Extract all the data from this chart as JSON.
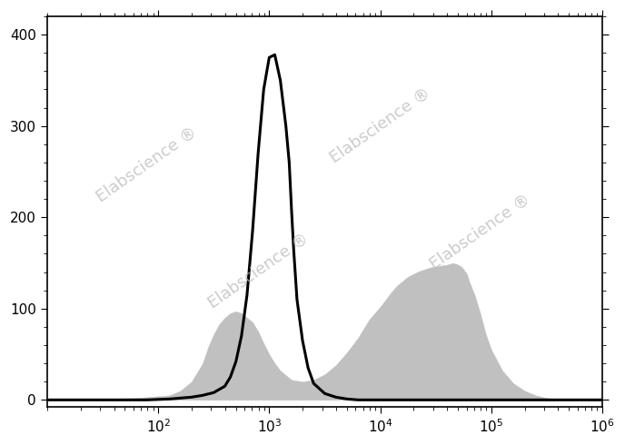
{
  "xlim_log": [
    1.0,
    6.0
  ],
  "ylim": [
    -8,
    420
  ],
  "yticks": [
    0,
    100,
    200,
    300,
    400
  ],
  "background_color": "#ffffff",
  "watermark_text": "Elabscience",
  "watermark_color": "#bbbbbb",
  "isotype_color": "#000000",
  "cd34_fill_color": "#c0c0c0",
  "isotype_linewidth": 2.2,
  "isotype_data": {
    "log_x": [
      1.0,
      1.6,
      1.9,
      2.1,
      2.2,
      2.3,
      2.4,
      2.5,
      2.6,
      2.65,
      2.7,
      2.75,
      2.8,
      2.85,
      2.9,
      2.95,
      3.0,
      3.05,
      3.1,
      3.15,
      3.18,
      3.2,
      3.22,
      3.25,
      3.3,
      3.35,
      3.4,
      3.5,
      3.6,
      3.7,
      3.8,
      4.0,
      4.5,
      5.0,
      6.0
    ],
    "y": [
      0,
      0,
      0,
      1,
      2,
      3,
      5,
      8,
      15,
      25,
      42,
      70,
      115,
      185,
      270,
      340,
      375,
      378,
      350,
      300,
      260,
      210,
      165,
      110,
      65,
      35,
      18,
      7,
      3,
      1,
      0,
      0,
      0,
      0,
      0
    ]
  },
  "cd34_data": {
    "log_x": [
      1.0,
      1.8,
      2.1,
      2.2,
      2.3,
      2.4,
      2.45,
      2.5,
      2.55,
      2.6,
      2.65,
      2.7,
      2.75,
      2.8,
      2.85,
      2.9,
      2.95,
      3.0,
      3.05,
      3.1,
      3.2,
      3.3,
      3.4,
      3.5,
      3.6,
      3.65,
      3.7,
      3.75,
      3.8,
      3.85,
      3.9,
      3.95,
      4.0,
      4.05,
      4.1,
      4.15,
      4.2,
      4.25,
      4.3,
      4.35,
      4.4,
      4.45,
      4.5,
      4.55,
      4.6,
      4.63,
      4.65,
      4.68,
      4.7,
      4.73,
      4.75,
      4.78,
      4.8,
      4.85,
      4.9,
      4.95,
      5.0,
      5.1,
      5.2,
      5.3,
      5.4,
      5.5,
      5.7,
      6.0
    ],
    "y": [
      0,
      2,
      5,
      10,
      20,
      40,
      58,
      72,
      83,
      90,
      95,
      97,
      95,
      90,
      85,
      75,
      62,
      50,
      40,
      32,
      22,
      20,
      22,
      28,
      38,
      45,
      52,
      60,
      68,
      78,
      88,
      95,
      102,
      110,
      118,
      125,
      130,
      135,
      138,
      141,
      143,
      145,
      146,
      147,
      148,
      149,
      150,
      149,
      148,
      146,
      143,
      138,
      130,
      115,
      95,
      72,
      55,
      32,
      18,
      10,
      5,
      2,
      0,
      0
    ]
  }
}
